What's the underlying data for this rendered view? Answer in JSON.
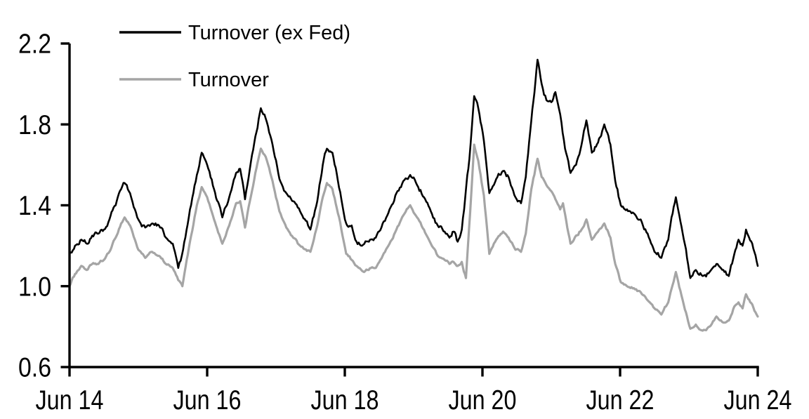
{
  "chart_data": {
    "type": "line",
    "title": "",
    "x_axis": {
      "tick_labels": [
        "Jun 14",
        "Jun 16",
        "Jun 18",
        "Jun 20",
        "Jun 22",
        "Jun 24"
      ],
      "tick_positions_years": [
        0,
        2,
        4,
        6,
        8,
        10
      ],
      "range_years": [
        0,
        10
      ]
    },
    "y_axis": {
      "tick_labels": [
        "0.6",
        "1.0",
        "1.4",
        "1.8",
        "2.2"
      ],
      "tick_values": [
        0.6,
        1.0,
        1.4,
        1.8,
        2.2
      ],
      "range": [
        0.6,
        2.2
      ]
    },
    "grid": "off",
    "axis_color": "#000000",
    "legend": {
      "position": "top-left-inside",
      "entries": [
        {
          "label": "Turnover (ex Fed)",
          "color": "#000000"
        },
        {
          "label": "Turnover",
          "color": "#A5A5A5"
        }
      ]
    },
    "series": [
      {
        "name": "Turnover (ex Fed)",
        "color": "#000000",
        "stroke_width": 2.6,
        "jitter": 0.012,
        "points": [
          [
            0.0,
            1.16
          ],
          [
            0.08,
            1.2
          ],
          [
            0.17,
            1.23
          ],
          [
            0.25,
            1.21
          ],
          [
            0.33,
            1.25
          ],
          [
            0.42,
            1.26
          ],
          [
            0.5,
            1.28
          ],
          [
            0.58,
            1.33
          ],
          [
            0.67,
            1.4
          ],
          [
            0.75,
            1.48
          ],
          [
            0.8,
            1.51
          ],
          [
            0.88,
            1.46
          ],
          [
            0.95,
            1.38
          ],
          [
            1.0,
            1.33
          ],
          [
            1.1,
            1.29
          ],
          [
            1.2,
            1.31
          ],
          [
            1.3,
            1.3
          ],
          [
            1.4,
            1.24
          ],
          [
            1.5,
            1.21
          ],
          [
            1.58,
            1.09
          ],
          [
            1.65,
            1.18
          ],
          [
            1.75,
            1.38
          ],
          [
            1.85,
            1.55
          ],
          [
            1.92,
            1.66
          ],
          [
            2.0,
            1.6
          ],
          [
            2.1,
            1.48
          ],
          [
            2.22,
            1.34
          ],
          [
            2.32,
            1.44
          ],
          [
            2.42,
            1.56
          ],
          [
            2.48,
            1.58
          ],
          [
            2.55,
            1.43
          ],
          [
            2.62,
            1.58
          ],
          [
            2.7,
            1.74
          ],
          [
            2.78,
            1.88
          ],
          [
            2.85,
            1.83
          ],
          [
            2.95,
            1.7
          ],
          [
            3.05,
            1.53
          ],
          [
            3.15,
            1.46
          ],
          [
            3.25,
            1.42
          ],
          [
            3.35,
            1.37
          ],
          [
            3.5,
            1.28
          ],
          [
            3.6,
            1.42
          ],
          [
            3.68,
            1.6
          ],
          [
            3.74,
            1.68
          ],
          [
            3.82,
            1.66
          ],
          [
            3.9,
            1.52
          ],
          [
            3.95,
            1.43
          ],
          [
            4.02,
            1.31
          ],
          [
            4.1,
            1.3
          ],
          [
            4.17,
            1.22
          ],
          [
            4.25,
            1.2
          ],
          [
            4.35,
            1.22
          ],
          [
            4.45,
            1.24
          ],
          [
            4.55,
            1.31
          ],
          [
            4.65,
            1.38
          ],
          [
            4.75,
            1.46
          ],
          [
            4.85,
            1.52
          ],
          [
            4.95,
            1.55
          ],
          [
            5.05,
            1.5
          ],
          [
            5.15,
            1.44
          ],
          [
            5.25,
            1.37
          ],
          [
            5.35,
            1.3
          ],
          [
            5.45,
            1.27
          ],
          [
            5.52,
            1.24
          ],
          [
            5.58,
            1.27
          ],
          [
            5.64,
            1.22
          ],
          [
            5.7,
            1.28
          ],
          [
            5.75,
            1.44
          ],
          [
            5.81,
            1.63
          ],
          [
            5.88,
            1.94
          ],
          [
            5.94,
            1.88
          ],
          [
            6.02,
            1.72
          ],
          [
            6.1,
            1.46
          ],
          [
            6.2,
            1.53
          ],
          [
            6.3,
            1.57
          ],
          [
            6.38,
            1.54
          ],
          [
            6.48,
            1.44
          ],
          [
            6.56,
            1.41
          ],
          [
            6.63,
            1.54
          ],
          [
            6.71,
            1.82
          ],
          [
            6.8,
            2.12
          ],
          [
            6.86,
            2.0
          ],
          [
            6.93,
            1.92
          ],
          [
            7.0,
            1.91
          ],
          [
            7.06,
            1.96
          ],
          [
            7.13,
            1.85
          ],
          [
            7.2,
            1.68
          ],
          [
            7.28,
            1.56
          ],
          [
            7.36,
            1.6
          ],
          [
            7.44,
            1.7
          ],
          [
            7.51,
            1.82
          ],
          [
            7.59,
            1.66
          ],
          [
            7.68,
            1.71
          ],
          [
            7.77,
            1.8
          ],
          [
            7.86,
            1.7
          ],
          [
            7.93,
            1.52
          ],
          [
            8.01,
            1.4
          ],
          [
            8.1,
            1.38
          ],
          [
            8.2,
            1.36
          ],
          [
            8.3,
            1.33
          ],
          [
            8.4,
            1.26
          ],
          [
            8.5,
            1.17
          ],
          [
            8.6,
            1.14
          ],
          [
            8.7,
            1.23
          ],
          [
            8.81,
            1.44
          ],
          [
            8.91,
            1.26
          ],
          [
            9.02,
            1.04
          ],
          [
            9.1,
            1.08
          ],
          [
            9.2,
            1.05
          ],
          [
            9.3,
            1.07
          ],
          [
            9.4,
            1.11
          ],
          [
            9.5,
            1.08
          ],
          [
            9.58,
            1.05
          ],
          [
            9.66,
            1.16
          ],
          [
            9.72,
            1.23
          ],
          [
            9.78,
            1.2
          ],
          [
            9.83,
            1.28
          ],
          [
            9.92,
            1.21
          ],
          [
            10.0,
            1.1
          ]
        ]
      },
      {
        "name": "Turnover",
        "color": "#A5A5A5",
        "stroke_width": 3.2,
        "jitter": 0.006,
        "points": [
          [
            0.0,
            1.0
          ],
          [
            0.08,
            1.06
          ],
          [
            0.17,
            1.1
          ],
          [
            0.25,
            1.08
          ],
          [
            0.33,
            1.11
          ],
          [
            0.42,
            1.11
          ],
          [
            0.5,
            1.13
          ],
          [
            0.58,
            1.17
          ],
          [
            0.67,
            1.24
          ],
          [
            0.75,
            1.31
          ],
          [
            0.8,
            1.34
          ],
          [
            0.88,
            1.3
          ],
          [
            0.95,
            1.23
          ],
          [
            1.0,
            1.18
          ],
          [
            1.1,
            1.14
          ],
          [
            1.2,
            1.17
          ],
          [
            1.3,
            1.15
          ],
          [
            1.4,
            1.11
          ],
          [
            1.5,
            1.09
          ],
          [
            1.58,
            1.03
          ],
          [
            1.64,
            1.0
          ],
          [
            1.75,
            1.22
          ],
          [
            1.85,
            1.4
          ],
          [
            1.92,
            1.49
          ],
          [
            2.0,
            1.44
          ],
          [
            2.1,
            1.33
          ],
          [
            2.22,
            1.21
          ],
          [
            2.32,
            1.3
          ],
          [
            2.42,
            1.41
          ],
          [
            2.48,
            1.42
          ],
          [
            2.55,
            1.29
          ],
          [
            2.62,
            1.42
          ],
          [
            2.7,
            1.56
          ],
          [
            2.78,
            1.68
          ],
          [
            2.85,
            1.64
          ],
          [
            2.95,
            1.52
          ],
          [
            3.05,
            1.37
          ],
          [
            3.15,
            1.29
          ],
          [
            3.25,
            1.24
          ],
          [
            3.35,
            1.2
          ],
          [
            3.5,
            1.17
          ],
          [
            3.6,
            1.3
          ],
          [
            3.68,
            1.44
          ],
          [
            3.74,
            1.51
          ],
          [
            3.82,
            1.48
          ],
          [
            3.9,
            1.36
          ],
          [
            3.95,
            1.28
          ],
          [
            4.02,
            1.16
          ],
          [
            4.1,
            1.13
          ],
          [
            4.17,
            1.1
          ],
          [
            4.28,
            1.07
          ],
          [
            4.38,
            1.09
          ],
          [
            4.45,
            1.09
          ],
          [
            4.55,
            1.15
          ],
          [
            4.65,
            1.21
          ],
          [
            4.75,
            1.28
          ],
          [
            4.85,
            1.35
          ],
          [
            4.95,
            1.4
          ],
          [
            5.05,
            1.34
          ],
          [
            5.15,
            1.28
          ],
          [
            5.25,
            1.21
          ],
          [
            5.35,
            1.15
          ],
          [
            5.45,
            1.13
          ],
          [
            5.52,
            1.11
          ],
          [
            5.58,
            1.12
          ],
          [
            5.64,
            1.1
          ],
          [
            5.7,
            1.12
          ],
          [
            5.76,
            1.04
          ],
          [
            5.82,
            1.36
          ],
          [
            5.88,
            1.7
          ],
          [
            5.94,
            1.62
          ],
          [
            6.02,
            1.45
          ],
          [
            6.1,
            1.16
          ],
          [
            6.2,
            1.23
          ],
          [
            6.3,
            1.27
          ],
          [
            6.38,
            1.24
          ],
          [
            6.48,
            1.18
          ],
          [
            6.56,
            1.17
          ],
          [
            6.63,
            1.26
          ],
          [
            6.71,
            1.48
          ],
          [
            6.8,
            1.63
          ],
          [
            6.86,
            1.54
          ],
          [
            6.93,
            1.5
          ],
          [
            7.0,
            1.47
          ],
          [
            7.06,
            1.43
          ],
          [
            7.13,
            1.38
          ],
          [
            7.17,
            1.41
          ],
          [
            7.28,
            1.21
          ],
          [
            7.36,
            1.25
          ],
          [
            7.44,
            1.28
          ],
          [
            7.51,
            1.33
          ],
          [
            7.59,
            1.23
          ],
          [
            7.68,
            1.27
          ],
          [
            7.77,
            1.31
          ],
          [
            7.86,
            1.24
          ],
          [
            7.93,
            1.11
          ],
          [
            8.01,
            1.02
          ],
          [
            8.1,
            1.0
          ],
          [
            8.2,
            0.99
          ],
          [
            8.3,
            0.97
          ],
          [
            8.4,
            0.93
          ],
          [
            8.5,
            0.89
          ],
          [
            8.6,
            0.86
          ],
          [
            8.7,
            0.92
          ],
          [
            8.81,
            1.07
          ],
          [
            8.91,
            0.93
          ],
          [
            9.02,
            0.79
          ],
          [
            9.1,
            0.81
          ],
          [
            9.2,
            0.78
          ],
          [
            9.3,
            0.8
          ],
          [
            9.4,
            0.85
          ],
          [
            9.5,
            0.82
          ],
          [
            9.58,
            0.83
          ],
          [
            9.66,
            0.9
          ],
          [
            9.72,
            0.92
          ],
          [
            9.78,
            0.89
          ],
          [
            9.83,
            0.96
          ],
          [
            9.92,
            0.91
          ],
          [
            10.0,
            0.85
          ]
        ]
      }
    ]
  }
}
